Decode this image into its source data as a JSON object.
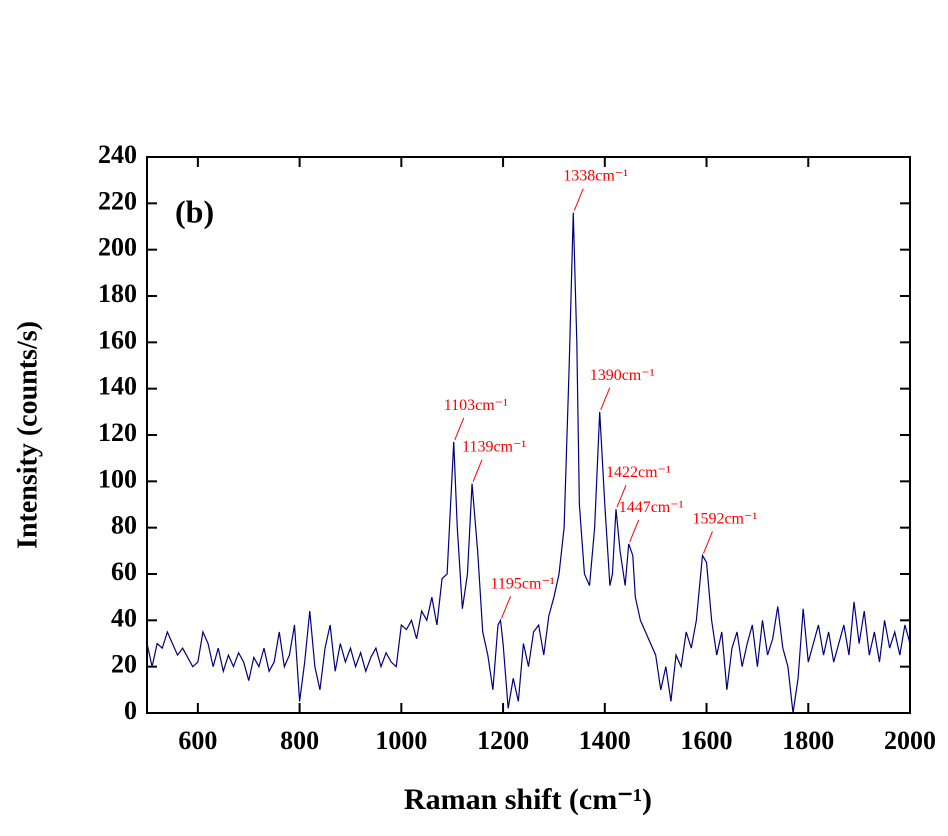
{
  "chart_data": {
    "type": "line",
    "xlabel": "Raman shift (cm⁻¹)",
    "ylabel": "Intensity (counts/s)",
    "panel_label": "(b)",
    "color": "#000080",
    "xlim": [
      500,
      2000
    ],
    "xticks": [
      600,
      800,
      1000,
      1200,
      1400,
      1600,
      1800,
      2000
    ],
    "ylim": [
      0,
      240
    ],
    "yticks": [
      0,
      20,
      40,
      60,
      80,
      100,
      120,
      140,
      160,
      180,
      200,
      220,
      240
    ],
    "x": [
      500,
      510,
      520,
      530,
      540,
      550,
      560,
      570,
      580,
      590,
      600,
      610,
      620,
      630,
      640,
      650,
      660,
      670,
      680,
      690,
      700,
      710,
      720,
      730,
      740,
      750,
      760,
      770,
      780,
      790,
      800,
      810,
      820,
      830,
      840,
      850,
      860,
      870,
      880,
      890,
      900,
      910,
      920,
      930,
      940,
      950,
      960,
      970,
      980,
      990,
      1000,
      1010,
      1020,
      1030,
      1040,
      1050,
      1060,
      1070,
      1080,
      1090,
      1103,
      1110,
      1120,
      1130,
      1139,
      1150,
      1160,
      1170,
      1180,
      1190,
      1195,
      1200,
      1210,
      1220,
      1230,
      1240,
      1250,
      1260,
      1270,
      1280,
      1290,
      1300,
      1310,
      1320,
      1330,
      1338,
      1345,
      1350,
      1360,
      1370,
      1380,
      1390,
      1400,
      1410,
      1415,
      1422,
      1430,
      1440,
      1447,
      1455,
      1460,
      1470,
      1480,
      1490,
      1500,
      1510,
      1520,
      1530,
      1540,
      1550,
      1560,
      1570,
      1580,
      1592,
      1600,
      1610,
      1620,
      1630,
      1640,
      1650,
      1660,
      1670,
      1680,
      1690,
      1700,
      1710,
      1720,
      1730,
      1740,
      1750,
      1760,
      1770,
      1780,
      1790,
      1800,
      1810,
      1820,
      1830,
      1840,
      1850,
      1860,
      1870,
      1880,
      1890,
      1900,
      1910,
      1920,
      1930,
      1940,
      1950,
      1960,
      1970,
      1980,
      1990,
      2000
    ],
    "values": [
      30,
      20,
      30,
      28,
      35,
      30,
      25,
      28,
      24,
      20,
      22,
      35,
      30,
      20,
      28,
      18,
      25,
      20,
      26,
      22,
      14,
      24,
      20,
      28,
      18,
      22,
      35,
      20,
      25,
      38,
      5,
      22,
      44,
      20,
      10,
      28,
      38,
      18,
      30,
      22,
      28,
      20,
      26,
      18,
      24,
      28,
      20,
      26,
      22,
      20,
      38,
      36,
      40,
      32,
      44,
      40,
      50,
      38,
      58,
      60,
      117,
      80,
      45,
      60,
      99,
      70,
      35,
      25,
      10,
      38,
      40,
      30,
      2,
      15,
      5,
      30,
      20,
      35,
      38,
      25,
      42,
      50,
      60,
      80,
      150,
      216,
      160,
      90,
      60,
      55,
      80,
      130,
      90,
      55,
      60,
      88,
      70,
      55,
      73,
      68,
      50,
      40,
      35,
      30,
      25,
      10,
      20,
      5,
      25,
      20,
      35,
      28,
      40,
      68,
      65,
      40,
      25,
      35,
      10,
      28,
      35,
      20,
      30,
      38,
      20,
      40,
      25,
      32,
      46,
      28,
      20,
      0,
      15,
      45,
      22,
      30,
      38,
      25,
      35,
      22,
      30,
      38,
      25,
      48,
      30,
      44,
      25,
      35,
      22,
      40,
      28,
      35,
      25,
      38,
      30
    ],
    "annotations": [
      {
        "text": "1103cm⁻¹",
        "x": 1103,
        "y": 117
      },
      {
        "text": "1139cm⁻¹",
        "x": 1139,
        "y": 99
      },
      {
        "text": "1195cm⁻¹",
        "x": 1195,
        "y": 40
      },
      {
        "text": "1338cm⁻¹",
        "x": 1338,
        "y": 216
      },
      {
        "text": "1390cm⁻¹",
        "x": 1390,
        "y": 130
      },
      {
        "text": "1422cm⁻¹",
        "x": 1422,
        "y": 88
      },
      {
        "text": "1447cm⁻¹",
        "x": 1447,
        "y": 73
      },
      {
        "text": "1592cm⁻¹",
        "x": 1592,
        "y": 68
      }
    ]
  }
}
